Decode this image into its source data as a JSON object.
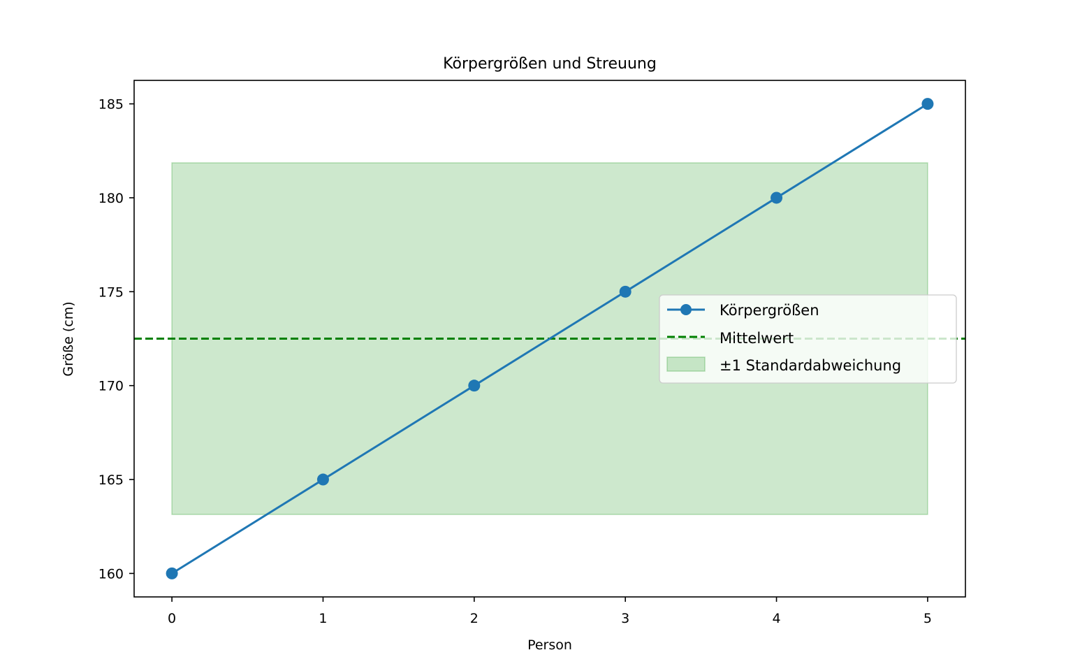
{
  "chart_data": {
    "type": "line",
    "title": "Körpergrößen und Streuung",
    "xlabel": "Person",
    "ylabel": "Größe (cm)",
    "xlim": [
      -0.25,
      5.25
    ],
    "ylim": [
      158.75,
      186.25
    ],
    "x_ticks": [
      0,
      1,
      2,
      3,
      4,
      5
    ],
    "y_ticks": [
      160,
      165,
      170,
      175,
      180,
      185
    ],
    "grid": false,
    "legend_position": "center-right",
    "series": [
      {
        "name": "Körpergrößen",
        "x": [
          0,
          1,
          2,
          3,
          4,
          5
        ],
        "y": [
          160,
          165,
          170,
          175,
          180,
          185
        ],
        "color": "#1f77b4",
        "marker": "circle"
      }
    ],
    "mean_line": {
      "name": "Mittelwert",
      "y": 172.5,
      "color": "#008000",
      "style": "dashed"
    },
    "std_band": {
      "name": "±1 Standardabweichung",
      "x_range": [
        0,
        5
      ],
      "y_range": [
        163.14,
        181.86
      ],
      "color": "#2ca02c",
      "opacity": 0.24
    }
  }
}
